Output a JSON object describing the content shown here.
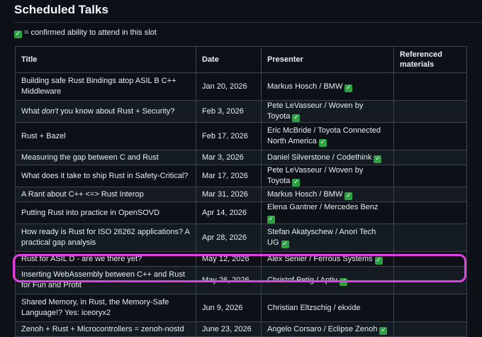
{
  "page": {
    "heading": "Scheduled Talks",
    "legend_text": " = confirmed ability to attend in this slot"
  },
  "table": {
    "headers": {
      "title": "Title",
      "date": "Date",
      "presenter": "Presenter",
      "ref_line1": "Referenced",
      "ref_line2": "materials"
    },
    "rows": [
      {
        "title_pre": "Building safe Rust Bindings atop ASIL B C++ Middleware",
        "title_em": "",
        "title_post": "",
        "date": "Jan 20, 2026",
        "presenter": "Markus Hosch / BMW",
        "confirmed": true,
        "tall": true
      },
      {
        "title_pre": "What ",
        "title_em": "don't",
        "title_post": " you know about Rust + Security?",
        "date": "Feb 3, 2026",
        "presenter": "Pete LeVasseur / Woven by Toyota",
        "confirmed": true,
        "tall": false
      },
      {
        "title_pre": "Rust + Bazel",
        "title_em": "",
        "title_post": "",
        "date": "Feb 17, 2026",
        "presenter": "Eric McBride / Toyota Connected North America",
        "confirmed": true,
        "tall": true
      },
      {
        "title_pre": "Measuring the gap between C and Rust",
        "title_em": "",
        "title_post": "",
        "date": "Mar 3, 2026",
        "presenter": "Daniel Silverstone / Codethink",
        "confirmed": true,
        "tall": false
      },
      {
        "title_pre": "What does it take to ship Rust in Safety-Critical?",
        "title_em": "",
        "title_post": "",
        "date": "Mar 17, 2026",
        "presenter": "Pete LeVasseur / Woven by Toyota",
        "confirmed": true,
        "tall": false
      },
      {
        "title_pre": "A Rant about C++ <=> Rust Interop",
        "title_em": "",
        "title_post": "",
        "date": "Mar 31, 2026",
        "presenter": "Markus Hosch / BMW",
        "confirmed": true,
        "tall": false
      },
      {
        "title_pre": "Putting Rust into practice in OpenSOVD",
        "title_em": "",
        "title_post": "",
        "date": "Apr 14, 2026",
        "presenter": "Elena Gantner / Mercedes Benz",
        "confirmed": true,
        "tall": false
      },
      {
        "title_pre": "How ready is Rust for ISO 26262 applications? A practical gap analysis",
        "title_em": "",
        "title_post": "",
        "date": "Apr 28, 2026",
        "presenter": "Stefan Akatyschew / Anori Tech UG",
        "confirmed": true,
        "tall": true
      },
      {
        "title_pre": "Rust for ASIL D - are we there yet?",
        "title_em": "",
        "title_post": "",
        "date": "May 12, 2026",
        "presenter": "Alex Senier / Ferrous Systems",
        "confirmed": true,
        "tall": false
      },
      {
        "title_pre": "Inserting WebAssembly between C++ and Rust for Fun and Profit",
        "title_em": "",
        "title_post": "",
        "date": "May 26, 2026",
        "presenter": "Christof Petig / Aptiv",
        "confirmed": true,
        "tall": true
      },
      {
        "title_pre": "Shared Memory, in Rust, the Memory-Safe Language!? Yes: iceoryx2",
        "title_em": "",
        "title_post": "",
        "date": "Jun 9, 2026",
        "presenter": "Christian Eltzschig / ekxide",
        "confirmed": false,
        "tall": true
      },
      {
        "title_pre": "Zenoh + Rust + Microcontrollers = zenoh-nostd",
        "title_em": "",
        "title_post": "",
        "date": "June 23, 2026",
        "presenter": "Angelo Corsaro / Eclipse Zenoh",
        "confirmed": true,
        "tall": false
      }
    ]
  },
  "colors": {
    "background": "#0d1117",
    "confirmed_check": "#2ea043",
    "highlight_outline": "#e040e0"
  },
  "icons": {
    "confirmed": "check-mark-icon"
  }
}
